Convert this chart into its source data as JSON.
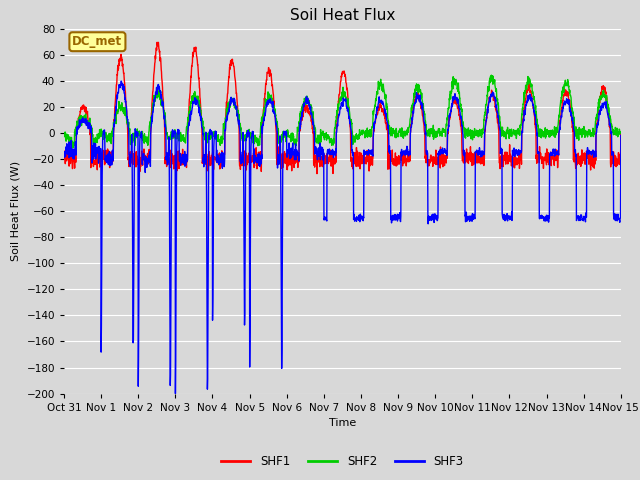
{
  "title": "Soil Heat Flux",
  "ylabel": "Soil Heat Flux (W)",
  "xlabel": "Time",
  "ylim": [
    -200,
    80
  ],
  "yticks": [
    -200,
    -180,
    -160,
    -140,
    -120,
    -100,
    -80,
    -60,
    -40,
    -20,
    0,
    20,
    40,
    60,
    80
  ],
  "xtick_labels": [
    "Oct 31",
    "Nov 1",
    "Nov 2",
    "Nov 3",
    "Nov 4",
    "Nov 5",
    "Nov 6",
    "Nov 7",
    "Nov 8",
    "Nov 9",
    "Nov 10",
    "Nov 11",
    "Nov 12",
    "Nov 13",
    "Nov 14",
    "Nov 15"
  ],
  "legend_labels": [
    "SHF1",
    "SHF2",
    "SHF3"
  ],
  "colors": {
    "SHF1": "#ff0000",
    "SHF2": "#00cc00",
    "SHF3": "#0000ff"
  },
  "line_width": 1.0,
  "bg_color": "#d8d8d8",
  "plot_bg_color": "#d8d8d8",
  "grid_color": "#ffffff",
  "annotation_text": "DC_met",
  "annotation_bg": "#ffff99",
  "annotation_border": "#996600",
  "title_fontsize": 11,
  "axis_fontsize": 8,
  "tick_fontsize": 7.5
}
